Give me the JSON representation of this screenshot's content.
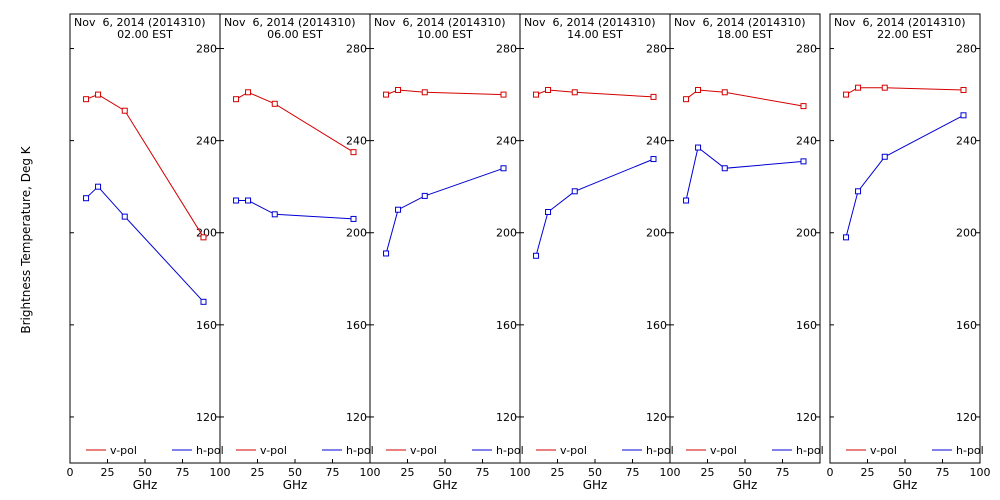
{
  "chart_data": {
    "type": "line",
    "ylabel": "Brightness Temperature, Deg K",
    "xlabel": "GHz",
    "xlim": [
      0,
      100
    ],
    "ylim": [
      100,
      295
    ],
    "yticks": [
      120,
      160,
      200,
      240,
      280
    ],
    "xticks": [
      0,
      25,
      50,
      75,
      100
    ],
    "xtick_labels_last_panel": [
      "0",
      "25",
      "50",
      "75",
      "100"
    ],
    "xtick_labels": [
      "",
      "25",
      "50",
      "75",
      "100"
    ],
    "colors": {
      "v-pol": "#d40000",
      "h-pol": "#0000d4"
    },
    "legend": [
      {
        "name": "v-pol",
        "color": "#d40000"
      },
      {
        "name": "h-pol",
        "color": "#0000d4"
      }
    ],
    "panels": [
      {
        "date": "Nov  6, 2014 (2014310)",
        "time": "02.00 EST",
        "series": [
          {
            "name": "v-pol",
            "x": [
              10.7,
              18.7,
              36.5,
              89
            ],
            "y": [
              258,
              260,
              253,
              198
            ]
          },
          {
            "name": "h-pol",
            "x": [
              10.7,
              18.7,
              36.5,
              89
            ],
            "y": [
              215,
              220,
              207,
              170
            ]
          }
        ]
      },
      {
        "date": "Nov  6, 2014 (2014310)",
        "time": "06.00 EST",
        "series": [
          {
            "name": "v-pol",
            "x": [
              10.7,
              18.7,
              36.5,
              89
            ],
            "y": [
              258,
              261,
              256,
              235
            ]
          },
          {
            "name": "h-pol",
            "x": [
              10.7,
              18.7,
              36.5,
              89
            ],
            "y": [
              214,
              214,
              208,
              206
            ]
          }
        ]
      },
      {
        "date": "Nov  6, 2014 (2014310)",
        "time": "10.00 EST",
        "series": [
          {
            "name": "v-pol",
            "x": [
              10.7,
              18.7,
              36.5,
              89
            ],
            "y": [
              260,
              262,
              261,
              260
            ]
          },
          {
            "name": "h-pol",
            "x": [
              10.7,
              18.7,
              36.5,
              89
            ],
            "y": [
              191,
              210,
              216,
              228
            ]
          }
        ]
      },
      {
        "date": "Nov  6, 2014 (2014310)",
        "time": "14.00 EST",
        "series": [
          {
            "name": "v-pol",
            "x": [
              10.7,
              18.7,
              36.5,
              89
            ],
            "y": [
              260,
              262,
              261,
              259
            ]
          },
          {
            "name": "h-pol",
            "x": [
              10.7,
              18.7,
              36.5,
              89
            ],
            "y": [
              190,
              209,
              218,
              232
            ]
          }
        ]
      },
      {
        "date": "Nov  6, 2014 (2014310)",
        "time": "18.00 EST",
        "series": [
          {
            "name": "v-pol",
            "x": [
              10.7,
              18.7,
              36.5,
              89
            ],
            "y": [
              258,
              262,
              261,
              255
            ]
          },
          {
            "name": "h-pol",
            "x": [
              10.7,
              18.7,
              36.5,
              89
            ],
            "y": [
              214,
              237,
              228,
              231
            ]
          }
        ]
      },
      {
        "date": "Nov  6, 2014 (2014310)",
        "time": "22.00 EST",
        "series": [
          {
            "name": "v-pol",
            "x": [
              10.7,
              18.7,
              36.5,
              89
            ],
            "y": [
              260,
              263,
              263,
              262
            ]
          },
          {
            "name": "h-pol",
            "x": [
              10.7,
              18.7,
              36.5,
              89
            ],
            "y": [
              198,
              218,
              233,
              251
            ]
          }
        ]
      }
    ]
  }
}
